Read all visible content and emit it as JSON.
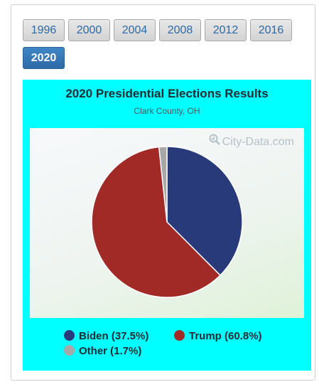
{
  "years": [
    "1996",
    "2000",
    "2004",
    "2008",
    "2012",
    "2016",
    "2020"
  ],
  "selected_year": "2020",
  "chart_data": {
    "type": "pie",
    "title": "2020 Presidential Elections Results",
    "subtitle": "Clark County, OH",
    "watermark": "City-Data.com",
    "slices": [
      {
        "name": "Biden",
        "value": 37.5,
        "label": "Biden (37.5%)",
        "color": "#283a7a"
      },
      {
        "name": "Trump",
        "value": 60.8,
        "label": "Trump (60.8%)",
        "color": "#a22a26"
      },
      {
        "name": "Other",
        "value": 1.7,
        "label": "Other (1.7%)",
        "color": "#a8a8a8"
      }
    ],
    "legend_position": "bottom"
  },
  "colors": {
    "chart_background": "#00ffff",
    "active_button": "#3275b5"
  }
}
